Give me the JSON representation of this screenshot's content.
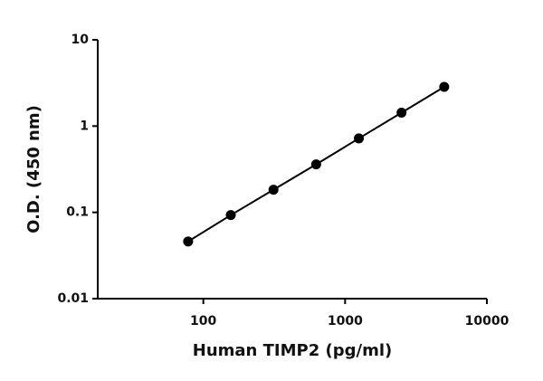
{
  "chart_data": {
    "type": "line",
    "x_label": "Human TIMP2 (pg/ml)",
    "y_label": "O.D. (450 nm)",
    "x": [
      78.125,
      156.25,
      312.5,
      625,
      1250,
      2500,
      5000
    ],
    "series": [
      {
        "color": "#000000",
        "values": [
          0.046,
          0.093,
          0.183,
          0.36,
          0.72,
          1.43,
          2.85
        ]
      }
    ],
    "xlim": [
      18,
      10000
    ],
    "ylim": [
      0.01,
      10
    ],
    "xticks": [
      100,
      1000,
      10000
    ],
    "yticks": [
      0.01,
      0.1,
      1,
      10
    ],
    "xscale": "log",
    "yscale": "log"
  }
}
